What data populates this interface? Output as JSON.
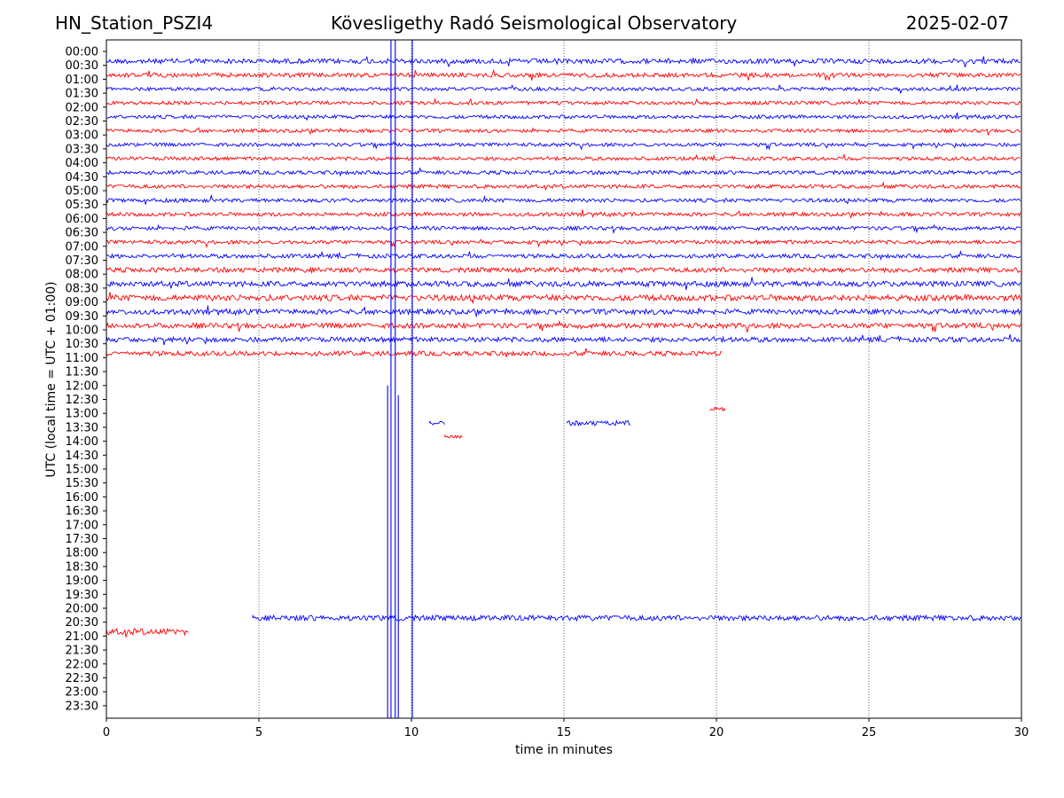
{
  "header": {
    "station": "HN_Station_PSZI4",
    "observatory": "Kövesligethy Radó Seismological Observatory",
    "date": "2025-02-07"
  },
  "chart_data": {
    "type": "line",
    "title": "Kövesligethy Radó Seismological Observatory",
    "xlabel": "time in minutes",
    "ylabel": "UTC (local time = UTC + 01:00)",
    "xlim": [
      0,
      30
    ],
    "x_ticks": [
      "0",
      "5",
      "10",
      "15",
      "20",
      "25",
      "30"
    ],
    "y_ticks": [
      "00:00",
      "00:30",
      "01:00",
      "01:30",
      "02:00",
      "02:30",
      "03:00",
      "03:30",
      "04:00",
      "04:30",
      "05:00",
      "05:30",
      "06:00",
      "06:30",
      "07:00",
      "07:30",
      "08:00",
      "08:30",
      "09:00",
      "09:30",
      "10:00",
      "10:30",
      "11:00",
      "11:30",
      "12:00",
      "12:30",
      "13:00",
      "13:30",
      "14:00",
      "14:30",
      "15:00",
      "15:30",
      "16:00",
      "16:30",
      "17:00",
      "17:30",
      "18:00",
      "18:30",
      "19:00",
      "19:30",
      "20:00",
      "20:30",
      "21:00",
      "21:30",
      "22:00",
      "22:30",
      "23:00",
      "23:30"
    ],
    "grid": "vertical dotted lines at 5-minute ticks",
    "colors": {
      "even_rows": "#0000ff",
      "odd_rows": "#ff0000"
    },
    "traces": [
      {
        "row": 0,
        "x_start": 0,
        "x_end": 30,
        "level": 0.5
      },
      {
        "row": 1,
        "x_start": 0,
        "x_end": 30,
        "level": 0.4
      },
      {
        "row": 2,
        "x_start": 0,
        "x_end": 30,
        "level": 0.25
      },
      {
        "row": 3,
        "x_start": 0,
        "x_end": 30,
        "level": 0.25
      },
      {
        "row": 4,
        "x_start": 0,
        "x_end": 30,
        "level": 0.25
      },
      {
        "row": 5,
        "x_start": 0,
        "x_end": 30,
        "level": 0.25
      },
      {
        "row": 6,
        "x_start": 0,
        "x_end": 30,
        "level": 0.25
      },
      {
        "row": 7,
        "x_start": 0,
        "x_end": 30,
        "level": 0.25
      },
      {
        "row": 8,
        "x_start": 0,
        "x_end": 30,
        "level": 0.3
      },
      {
        "row": 9,
        "x_start": 0,
        "x_end": 30,
        "level": 0.3
      },
      {
        "row": 10,
        "x_start": 0,
        "x_end": 30,
        "level": 0.3
      },
      {
        "row": 11,
        "x_start": 0,
        "x_end": 30,
        "level": 0.3
      },
      {
        "row": 12,
        "x_start": 0,
        "x_end": 30,
        "level": 0.3
      },
      {
        "row": 13,
        "x_start": 0,
        "x_end": 30,
        "level": 0.3
      },
      {
        "row": 14,
        "x_start": 0,
        "x_end": 30,
        "level": 0.35
      },
      {
        "row": 15,
        "x_start": 0,
        "x_end": 30,
        "level": 0.5
      },
      {
        "row": 16,
        "x_start": 0,
        "x_end": 30,
        "level": 0.6
      },
      {
        "row": 17,
        "x_start": 0,
        "x_end": 30,
        "level": 0.7
      },
      {
        "row": 18,
        "x_start": 0,
        "x_end": 30,
        "level": 0.55
      },
      {
        "row": 19,
        "x_start": 0,
        "x_end": 30,
        "level": 0.55
      },
      {
        "row": 20,
        "x_start": 0,
        "x_end": 30,
        "level": 0.5
      },
      {
        "row": 21,
        "x_start": 0,
        "x_end": 20.2,
        "level": 0.45
      },
      {
        "row": 25,
        "x_start": 19.8,
        "x_end": 20.3,
        "level": 0.4
      },
      {
        "row": 26,
        "x_start": 10.6,
        "x_end": 11.1,
        "level": 0.4
      },
      {
        "row": 26,
        "x_start": 15.1,
        "x_end": 17.2,
        "level": 0.5
      },
      {
        "row": 27,
        "x_start": 11.1,
        "x_end": 11.7,
        "level": 0.2
      },
      {
        "row": 40,
        "x_start": 4.8,
        "x_end": 30,
        "level": 0.6
      },
      {
        "row": 41,
        "x_start": 0,
        "x_end": 2.7,
        "level": 0.8
      }
    ],
    "spikes": [
      {
        "x": 9.22,
        "from_row": 23.3,
        "to_row": 48
      },
      {
        "x": 9.33,
        "from_row": -1,
        "to_row": 48
      },
      {
        "x": 9.47,
        "from_row": -1,
        "to_row": 48
      },
      {
        "x": 9.57,
        "from_row": 24,
        "to_row": 48
      },
      {
        "x": 10.03,
        "from_row": -1,
        "to_row": 48
      }
    ]
  }
}
